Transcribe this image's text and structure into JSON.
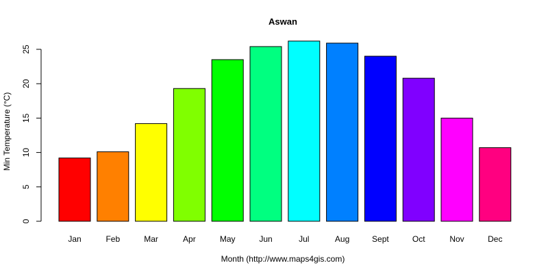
{
  "chart_data": {
    "type": "bar",
    "title": "Aswan",
    "xlabel": "Month (http://www.maps4gis.com)",
    "ylabel": "Min Temperature (°C)",
    "categories": [
      "Jan",
      "Feb",
      "Mar",
      "Apr",
      "May",
      "Jun",
      "Jul",
      "Aug",
      "Sept",
      "Oct",
      "Nov",
      "Dec"
    ],
    "values": [
      9.2,
      10.1,
      14.2,
      19.3,
      23.5,
      25.4,
      26.2,
      25.9,
      24.0,
      20.8,
      15.0,
      10.7
    ],
    "colors": [
      "#FF0000",
      "#FF8000",
      "#FFFF00",
      "#80FF00",
      "#00FF00",
      "#00FF80",
      "#00FFFF",
      "#0080FF",
      "#0000FF",
      "#8000FF",
      "#FF00FF",
      "#FF0080"
    ],
    "ylim": [
      0,
      25
    ],
    "yticks": [
      0,
      5,
      10,
      15,
      20,
      25
    ],
    "grid": false,
    "legend": "none"
  }
}
